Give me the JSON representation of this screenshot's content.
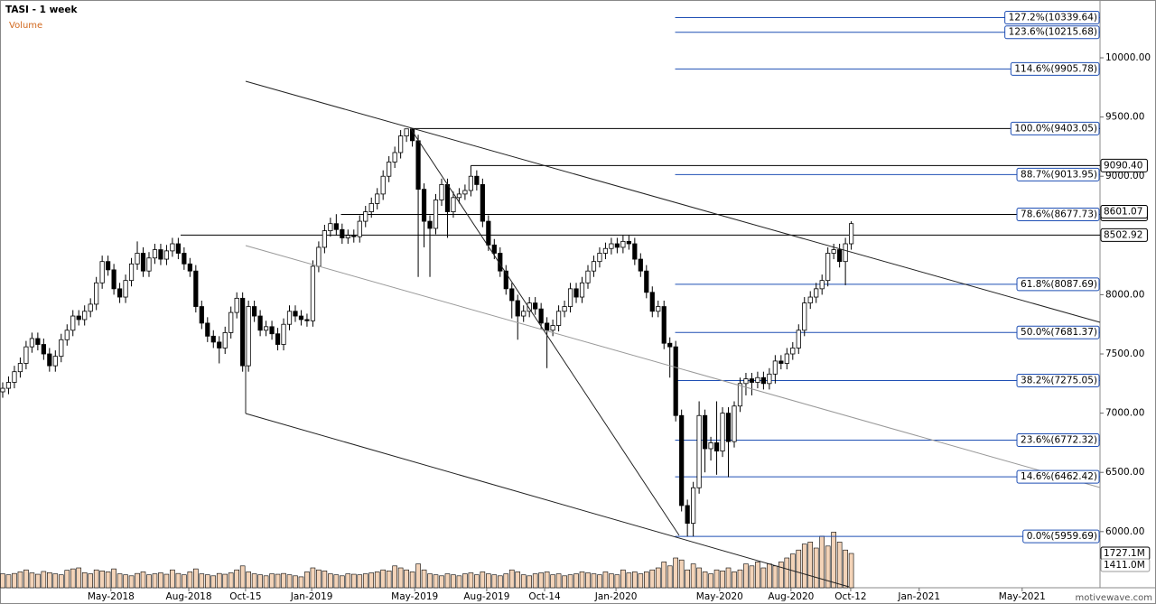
{
  "chart_data": {
    "type": "candlestick",
    "title": "TASI - 1 week",
    "volume_label": "Volume",
    "watermark": "motivewave.com",
    "xlim": [
      -0.46,
      187.5
    ],
    "ylim": [
      5526,
      10488
    ],
    "yticks": [
      {
        "value": 10000,
        "label": "10000.00"
      },
      {
        "value": 9500,
        "label": "9500.00"
      },
      {
        "value": 9000,
        "label": "9000.00"
      },
      {
        "value": 8500,
        "label": "8500.00"
      },
      {
        "value": 8000,
        "label": "8000.00"
      },
      {
        "value": 7500,
        "label": "7500.00"
      },
      {
        "value": 7000,
        "label": "7000.00"
      },
      {
        "value": 6500,
        "label": "6500.00"
      },
      {
        "value": 6000,
        "label": "6000.00"
      }
    ],
    "xticks": [
      {
        "value": 18.5,
        "label": "May-2018"
      },
      {
        "value": 31.8,
        "label": "Aug-2018"
      },
      {
        "value": 41.5,
        "label": "Oct-15"
      },
      {
        "value": 52.8,
        "label": "Jan-2019"
      },
      {
        "value": 70.4,
        "label": "May-2019"
      },
      {
        "value": 82.7,
        "label": "Aug-2019"
      },
      {
        "value": 92.6,
        "label": "Oct-14"
      },
      {
        "value": 104.8,
        "label": "Jan-2020"
      },
      {
        "value": 122.5,
        "label": "May-2020"
      },
      {
        "value": 134.7,
        "label": "Aug-2020"
      },
      {
        "value": 144.9,
        "label": "Oct-12"
      },
      {
        "value": 156.6,
        "label": "Jan-2021"
      },
      {
        "value": 174.2,
        "label": "May-2021"
      }
    ],
    "up_color": "#ffffff",
    "down_color": "#000000",
    "open": [
      7180,
      7210,
      7260,
      7350,
      7420,
      7560,
      7630,
      7580,
      7500,
      7400,
      7480,
      7620,
      7700,
      7820,
      7790,
      7860,
      7920,
      8100,
      8280,
      8210,
      8050,
      7980,
      8120,
      8260,
      8350,
      8200,
      8310,
      8380,
      8300,
      8370,
      8430,
      8350,
      8260,
      8200,
      7900,
      7760,
      7650,
      7600,
      7550,
      7680,
      7850,
      7970,
      7400,
      7900,
      7820,
      7700,
      7730,
      7670,
      7580,
      7750,
      7860,
      7820,
      7790,
      7780,
      8240,
      8400,
      8540,
      8600,
      8550,
      8480,
      8500,
      8490,
      8620,
      8700,
      8770,
      8850,
      9000,
      9120,
      9200,
      9340,
      9400,
      9300,
      8890,
      8620,
      8560,
      8800,
      8930,
      8700,
      8820,
      8850,
      8880,
      9000,
      8930,
      8620,
      8420,
      8350,
      8200,
      8050,
      7950,
      7820,
      7860,
      7930,
      7880,
      7760,
      7700,
      7740,
      7860,
      7900,
      8050,
      7980,
      8100,
      8200,
      8280,
      8350,
      8390,
      8430,
      8400,
      8450,
      8430,
      8300,
      8200,
      8020,
      7860,
      7900,
      7590,
      7560,
      6980,
      6220,
      6070,
      6370,
      6980,
      6700,
      6750,
      6680,
      7000,
      6760,
      7060,
      7250,
      7290,
      7260,
      7300,
      7250,
      7330,
      7440,
      7420,
      7500,
      7550,
      7700,
      7930,
      7980,
      8050,
      8120,
      8350,
      8380,
      8280,
      8430
    ],
    "high": [
      7260,
      7310,
      7400,
      7470,
      7610,
      7680,
      7680,
      7630,
      7550,
      7530,
      7670,
      7750,
      7870,
      7870,
      7910,
      7970,
      8150,
      8330,
      8330,
      8260,
      8100,
      8170,
      8310,
      8450,
      8400,
      8360,
      8430,
      8430,
      8420,
      8480,
      8480,
      8400,
      8310,
      8250,
      7950,
      7810,
      7700,
      7650,
      7730,
      7900,
      8020,
      8020,
      7950,
      7950,
      7870,
      7780,
      7780,
      7720,
      7800,
      7910,
      7910,
      7870,
      7840,
      8290,
      8450,
      8590,
      8650,
      8680,
      8600,
      8550,
      8550,
      8670,
      8750,
      8820,
      8900,
      9050,
      9170,
      9250,
      9390,
      9400,
      9403,
      9350,
      8940,
      8670,
      8850,
      8980,
      8980,
      8870,
      8900,
      8930,
      9090,
      9050,
      8980,
      8670,
      8470,
      8400,
      8250,
      8100,
      8000,
      7910,
      7980,
      7980,
      7930,
      7810,
      7790,
      7910,
      7950,
      8100,
      8100,
      8150,
      8250,
      8330,
      8400,
      8440,
      8480,
      8480,
      8500,
      8500,
      8480,
      8350,
      8250,
      8070,
      7950,
      7950,
      7640,
      7610,
      7030,
      6270,
      6420,
      7100,
      7030,
      6800,
      7100,
      7050,
      7050,
      7100,
      7300,
      7340,
      7340,
      7350,
      7350,
      7380,
      7490,
      7490,
      7550,
      7600,
      7750,
      7980,
      8030,
      8100,
      8170,
      8400,
      8430,
      8430,
      8480,
      8620
    ],
    "low": [
      7130,
      7160,
      7210,
      7300,
      7370,
      7510,
      7530,
      7450,
      7350,
      7350,
      7430,
      7570,
      7650,
      7740,
      7740,
      7810,
      7870,
      8050,
      8160,
      8000,
      7930,
      7930,
      8070,
      8210,
      8150,
      8150,
      8260,
      8250,
      8250,
      8320,
      8300,
      8210,
      8150,
      7850,
      7710,
      7600,
      7550,
      7420,
      7500,
      7630,
      7800,
      7350,
      7350,
      7770,
      7650,
      7650,
      7620,
      7530,
      7530,
      7700,
      7770,
      7740,
      7730,
      7730,
      8190,
      8350,
      8490,
      8500,
      8430,
      8430,
      8440,
      8440,
      8570,
      8650,
      8720,
      8800,
      8950,
      9070,
      9150,
      9290,
      9250,
      8150,
      8400,
      8150,
      8510,
      8750,
      8480,
      8650,
      8770,
      8800,
      8830,
      8880,
      8570,
      8370,
      8300,
      8150,
      8000,
      7800,
      7620,
      7770,
      7810,
      7830,
      7710,
      7380,
      7650,
      7690,
      7810,
      7850,
      7930,
      7930,
      8050,
      8150,
      8230,
      8300,
      8340,
      8350,
      8350,
      8380,
      8250,
      8150,
      7970,
      7810,
      7810,
      7540,
      7300,
      6930,
      6170,
      5960,
      5960,
      6320,
      6500,
      6600,
      6480,
      6630,
      6460,
      6710,
      7010,
      7150,
      7150,
      7210,
      7200,
      7200,
      7250,
      7370,
      7370,
      7450,
      7500,
      7650,
      7880,
      7930,
      8000,
      8070,
      8300,
      8230,
      8080,
      8380
    ],
    "close": [
      7210,
      7260,
      7350,
      7420,
      7560,
      7630,
      7580,
      7500,
      7400,
      7480,
      7620,
      7700,
      7820,
      7790,
      7860,
      7920,
      8100,
      8280,
      8210,
      8050,
      7980,
      8120,
      8260,
      8350,
      8200,
      8310,
      8380,
      8300,
      8370,
      8430,
      8350,
      8260,
      8200,
      7900,
      7760,
      7650,
      7600,
      7550,
      7680,
      7850,
      7970,
      7400,
      7900,
      7820,
      7700,
      7730,
      7670,
      7580,
      7750,
      7860,
      7820,
      7790,
      7780,
      8240,
      8400,
      8540,
      8600,
      8550,
      8480,
      8500,
      8490,
      8620,
      8700,
      8770,
      8850,
      9000,
      9120,
      9200,
      9340,
      9400,
      9300,
      8890,
      8620,
      8560,
      8800,
      8930,
      8700,
      8820,
      8850,
      8880,
      9000,
      8930,
      8620,
      8420,
      8350,
      8200,
      8050,
      7950,
      7820,
      7860,
      7930,
      7880,
      7760,
      7700,
      7740,
      7860,
      7900,
      8050,
      7980,
      8100,
      8200,
      8280,
      8350,
      8390,
      8430,
      8400,
      8450,
      8430,
      8300,
      8200,
      8020,
      7860,
      7900,
      7590,
      7560,
      6980,
      6220,
      6070,
      6370,
      6980,
      6700,
      6750,
      6680,
      7000,
      6760,
      7060,
      7250,
      7290,
      7260,
      7300,
      7250,
      7330,
      7440,
      7420,
      7500,
      7550,
      7700,
      7930,
      7980,
      8050,
      8120,
      8350,
      8380,
      8280,
      8430,
      8600
    ],
    "volume": [
      700,
      650,
      720,
      800,
      900,
      750,
      680,
      820,
      760,
      700,
      650,
      880,
      950,
      1000,
      760,
      700,
      900,
      850,
      800,
      950,
      700,
      650,
      600,
      720,
      800,
      650,
      700,
      750,
      680,
      900,
      720,
      650,
      800,
      950,
      700,
      650,
      600,
      720,
      680,
      750,
      900,
      1100,
      800,
      700,
      650,
      600,
      700,
      680,
      720,
      650,
      600,
      550,
      800,
      1000,
      900,
      850,
      700,
      650,
      600,
      700,
      680,
      650,
      700,
      750,
      800,
      900,
      850,
      1100,
      1000,
      900,
      800,
      1200,
      900,
      700,
      650,
      600,
      700,
      650,
      600,
      700,
      750,
      650,
      800,
      700,
      650,
      600,
      700,
      900,
      800,
      650,
      600,
      700,
      750,
      800,
      650,
      700,
      600,
      650,
      700,
      800,
      750,
      700,
      650,
      800,
      700,
      650,
      900,
      750,
      800,
      700,
      800,
      900,
      1000,
      1300,
      1100,
      1500,
      1400,
      900,
      1200,
      1000,
      800,
      700,
      900,
      850,
      1000,
      800,
      900,
      1200,
      1100,
      1300,
      1000,
      1200,
      1100,
      1300,
      1500,
      1700,
      1900,
      2200,
      2300,
      2000,
      2600,
      2100,
      2800,
      2300,
      1900,
      1727.1
    ],
    "volume_color": "#f3d3b8",
    "vol_ylim": [
      0,
      2955
    ],
    "volume_last": {
      "value": 1727.1,
      "label": "1727.1M"
    },
    "volume_ma": {
      "value": 1411.0,
      "label": "1411.0M"
    },
    "fib_color": "#1f4fb4",
    "fib_levels": {
      "values": [
        10339.64,
        10215.68,
        9905.78,
        9403.05,
        9013.95,
        8677.73,
        8087.69,
        7681.37,
        7275.05,
        6772.32,
        6462.42,
        5959.69
      ],
      "value_labels": [
        "127.2%(10339.64)",
        "123.6%(10215.68)",
        "114.6%(9905.78)",
        "100.0%(9403.05)",
        "88.7%(9013.95)",
        "78.6%(8677.73)",
        "61.8%(8087.69)",
        "50.0%(7681.37)",
        "38.2%(7275.05)",
        "23.6%(6772.32)",
        "14.6%(6462.42)",
        "0.0%(5959.69)"
      ]
    },
    "levels": [
      {
        "value": 9090.4,
        "label": "9090.40"
      },
      {
        "value": 8677.73,
        "label": "8677.73"
      },
      {
        "value": 8502.92,
        "label": "8502.92"
      }
    ],
    "last_price": 8601.07
  }
}
